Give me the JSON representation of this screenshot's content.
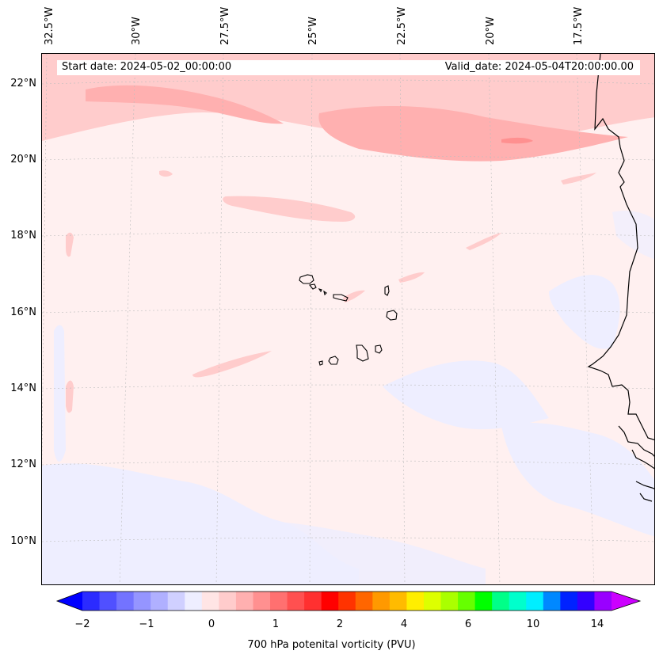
{
  "map": {
    "start_date_label": "Start date: 2024-05-02_00:00:00",
    "valid_date_label": "Valid_date: 2024-05-04T20:00:00.00",
    "lon_labels": [
      "32.5°W",
      "30°W",
      "27.5°W",
      "25°W",
      "22.5°W",
      "20°W",
      "17.5°W"
    ],
    "lat_labels": [
      "22°N",
      "20°N",
      "18°N",
      "16°N",
      "14°N",
      "12°N",
      "10°N"
    ],
    "background_color": "#fff0f0",
    "coast_color": "#000000"
  },
  "colorbar": {
    "label": "700 hPa potenital vorticity (PVU)",
    "tick_labels": [
      "−2",
      "−1",
      "0",
      "1",
      "2",
      "4",
      "6",
      "10",
      "14"
    ],
    "colors": [
      "#0000ff",
      "#2b2bff",
      "#5050ff",
      "#7373ff",
      "#9595ff",
      "#b0b0ff",
      "#d0d0ff",
      "#eeeeff",
      "#ffe5e5",
      "#ffcccc",
      "#ffb0b0",
      "#ff9090",
      "#ff7070",
      "#ff5050",
      "#ff3030",
      "#ff0000",
      "#ff3300",
      "#ff6600",
      "#ff9900",
      "#ffbb00",
      "#ffee00",
      "#ddff00",
      "#aaff00",
      "#66ff00",
      "#00ff00",
      "#00ff88",
      "#00ffcc",
      "#00eeff",
      "#0088ff",
      "#0022ff",
      "#3300ff",
      "#9900ff",
      "#cc00ff"
    ]
  }
}
